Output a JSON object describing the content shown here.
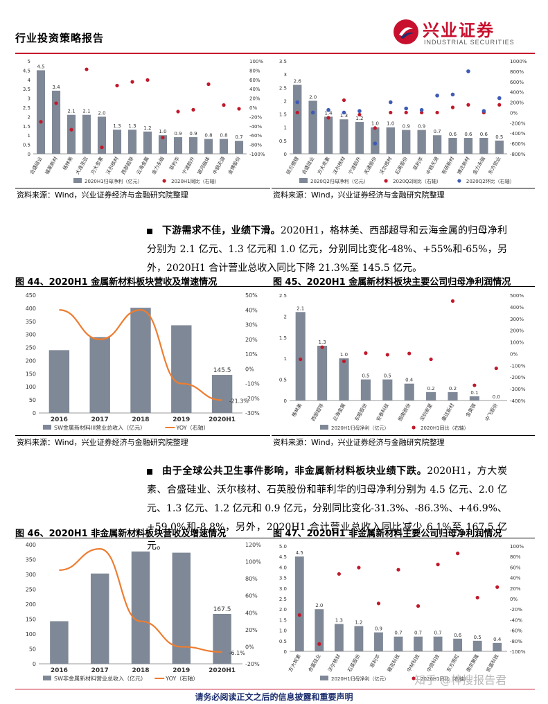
{
  "header": {
    "title": "行业投资策略报告",
    "logo_cn": "兴业证券",
    "logo_en": "INDUSTRIAL SECURITIES"
  },
  "sources": {
    "text": "资料来源：Wind，兴业证券经济与金融研究院整理"
  },
  "paragraphs": [
    {
      "bold": "下游需求不佳，业绩下滑。",
      "text": "2020H1，格林美、西部超导和云海金属的归母净利分别为 2.1 亿元、1.3 亿元和 1.0 亿元，分别同比变化-48%、+55%和-65%，另外，2020H1 合计营业总收入同比下降 21.3%至 145.5 亿元。"
    },
    {
      "bold": "由于全球公共卫生事件影响，非金属新材料板块业绩下跌。",
      "text": "2020H1，方大炭素、合盛硅业、沃尔核材、石英股份和菲利华的归母净利分别为 4.5 亿元、2.0 亿元、1.3 亿元、1.2 亿元和 0.9 亿元，分别同比变化-31.3%、-86.3%、+46.9%、+59.0%和-8.8%，另外，2020H1 合计营业总收入同比减少 6.1%至 167.5 亿元。"
    }
  ],
  "figures": {
    "fig44": "图 44、2020H1 金属新材料板块营收及增速情况",
    "fig45": "图 45、2020H1 金属新材料板块主要公司归母净利润情况",
    "fig46": "图 46、2020H1 非金属新材料板块营收及增速情况",
    "fig47": "图 47、2020H1 非金属新材料主要公司归母净利润情况"
  },
  "footer": "请务必阅读正文之后的信息披露和重要声明",
  "watermark": "知乎 @梓搜报告君",
  "chart_data": [
    {
      "id": "top-left",
      "type": "bar",
      "categories": [
        "合盛硅业",
        "福莱新材",
        "格林美",
        "大连圣亚",
        "方大炭素",
        "沃尔核材",
        "西部超导",
        "云海金属",
        "金力永磁",
        "菲利华",
        "宁波韵升",
        "银河磁体",
        "中钢天源",
        "金博股份"
      ],
      "values": [
        4.5,
        3.4,
        2.1,
        2.1,
        2.0,
        1.3,
        1.3,
        1.2,
        1.0,
        0.9,
        0.9,
        0.8,
        0.8,
        0.7
      ],
      "yoy": [
        -31,
        9,
        -48,
        82,
        -86,
        47,
        55,
        59,
        -65,
        -9,
        -5,
        50,
        5,
        -3
      ],
      "legend": [
        "2020H1归母净利（亿元）",
        "2020H1同比（右轴）"
      ],
      "ylim": [
        0,
        5
      ],
      "y2lim": [
        -100,
        100
      ],
      "yticks": [
        "0",
        "0.5",
        "1",
        "1.5",
        "2",
        "2.5",
        "3",
        "3.5",
        "4",
        "4.5",
        "5"
      ],
      "y2ticks": [
        "-100%",
        "-80%",
        "-60%",
        "-40%",
        "-20%",
        "0%",
        "20%",
        "40%",
        "60%",
        "80%",
        "100%"
      ]
    },
    {
      "id": "top-right",
      "type": "bar",
      "categories": [
        "硕贝德锂",
        "合盛硅业",
        "方大炭素",
        "沃尔核材",
        "宁波韵升",
        "天通股份",
        "沃尔核材",
        "石英股份",
        "菲利华",
        "中钢天源",
        "有研新材",
        "博迁新材",
        "金力永磁",
        "东方钽业"
      ],
      "values": [
        2.6,
        2.0,
        1.4,
        1.3,
        1.2,
        1.0,
        1.0,
        0.9,
        0.9,
        0.7,
        0.6,
        0.6,
        0.6,
        0.5
      ],
      "yoy": [
        0,
        0,
        -100,
        240,
        -40,
        -300,
        0,
        0,
        0,
        0,
        100,
        150,
        0,
        150
      ],
      "qoq": [
        200,
        0,
        50,
        0,
        30,
        -600,
        200,
        80,
        50,
        330,
        350,
        800,
        30,
        280
      ],
      "legend": [
        "2020Q2归母净利（亿元）",
        "2020Q2同比（右轴）",
        "2020Q2环比（右轴）"
      ],
      "ylim": [
        0,
        3.5
      ],
      "y2lim": [
        -800,
        1000
      ],
      "yticks": [
        "0",
        "0.5",
        "1",
        "1.5",
        "2",
        "2.5",
        "3",
        "3.5"
      ],
      "y2ticks": [
        "-800%",
        "-600%",
        "-400%",
        "-200%",
        "0%",
        "200%",
        "400%",
        "600%",
        "800%",
        "1000%"
      ]
    },
    {
      "id": "fig44",
      "type": "bar",
      "categories": [
        "2016",
        "2017",
        "2018",
        "2019",
        "2020H1"
      ],
      "values": [
        240,
        290,
        402,
        335,
        145.5
      ],
      "yoy": [
        40,
        20,
        40,
        -10,
        -21.3
      ],
      "labels": {
        "last": "145.5",
        "last_yoy": "-21.3%"
      },
      "legend": [
        "SW金属新材料III营业总收入（亿元）",
        "YOY（右轴）"
      ],
      "ylim": [
        0,
        450
      ],
      "y2lim": [
        -30,
        50
      ],
      "yticks": [
        "0",
        "50",
        "100",
        "150",
        "200",
        "250",
        "300",
        "350",
        "400",
        "450"
      ],
      "y2ticks": [
        "-30%",
        "-20%",
        "-10%",
        "0%",
        "10%",
        "20%",
        "30%",
        "40%",
        "50%"
      ]
    },
    {
      "id": "fig45",
      "type": "bar",
      "categories": [
        "格林美",
        "西部超导",
        "云海金属",
        "东睦股份",
        "安泰科技",
        "图南股份",
        "深圳新星",
        "康达新材",
        "金奥镁",
        "中飞股份"
      ],
      "values": [
        2.1,
        1.3,
        1.0,
        0.5,
        0.5,
        0.4,
        0.2,
        0.2,
        0.1,
        0.0
      ],
      "yoy": [
        -48,
        55,
        -65,
        5,
        -9,
        2,
        -48,
        450,
        -270,
        -125
      ],
      "legend": [
        "2020H1归母净利（亿元）",
        "2020H1同比（右轴）"
      ],
      "ylim": [
        0,
        2.5
      ],
      "y2lim": [
        -400,
        500
      ],
      "yticks": [
        "0",
        "0.5",
        "1",
        "1.5",
        "2",
        "2.5"
      ],
      "y2ticks": [
        "-400%",
        "-300%",
        "-200%",
        "-100%",
        "0%",
        "100%",
        "200%",
        "300%",
        "400%",
        "500%"
      ]
    },
    {
      "id": "fig46",
      "type": "bar",
      "categories": [
        "2016",
        "2017",
        "2018",
        "2019",
        "2020H1"
      ],
      "values": [
        143,
        303,
        377,
        373,
        167.5
      ],
      "yoy": [
        90,
        115,
        30,
        0,
        -6.1
      ],
      "labels": {
        "last": "167.5",
        "last_yoy": "-6.1%"
      },
      "legend": [
        "SW非金属新材料营业总收入（亿元）",
        "YOY（右轴）"
      ],
      "ylim": [
        0,
        400
      ],
      "y2lim": [
        -20,
        120
      ],
      "yticks": [
        "0",
        "50",
        "100",
        "150",
        "200",
        "250",
        "300",
        "350",
        "400"
      ],
      "y2ticks": [
        "-20%",
        "0%",
        "20%",
        "40%",
        "60%",
        "80%",
        "100%",
        "120%"
      ]
    },
    {
      "id": "fig47",
      "type": "bar",
      "categories": [
        "方大炭素",
        "合盛硅业",
        "沃尔核材",
        "石英股份",
        "菲利华",
        "雅克科技",
        "中材科技",
        "中简科技",
        "东方雨虹",
        "南京聚隆",
        "凯盛科技"
      ],
      "values": [
        4.5,
        2.0,
        1.3,
        1.2,
        0.9,
        0.7,
        0.7,
        0.7,
        0.6,
        0.5,
        0.4
      ],
      "yoy": [
        -31,
        -86,
        47,
        59,
        -9,
        55,
        -14,
        65,
        86,
        2,
        22
      ],
      "legend": [
        "2020H1归母净利（亿元）",
        "2020H1同比（右轴）"
      ],
      "ylim": [
        0,
        5
      ],
      "y2lim": [
        -100,
        100
      ],
      "yticks": [
        "0",
        "0.5",
        "1.0",
        "1.5",
        "2.0",
        "2.5",
        "3.0",
        "3.5",
        "4.0",
        "4.5",
        "5.0"
      ],
      "y2ticks": [
        "-100%",
        "-80%",
        "-60%",
        "-40%",
        "-20%",
        "0%",
        "20%",
        "40%",
        "60%",
        "80%",
        "100%"
      ]
    }
  ]
}
